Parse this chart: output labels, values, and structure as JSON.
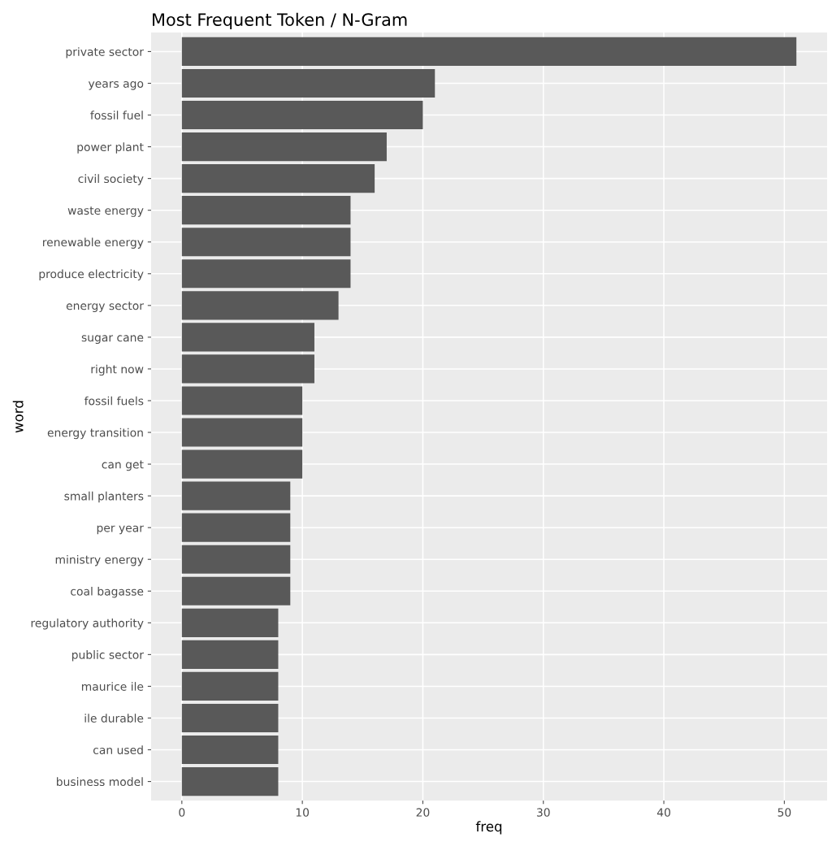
{
  "chart_data": {
    "type": "bar",
    "orientation": "horizontal",
    "title": "Most Frequent Token / N-Gram",
    "xlabel": "freq",
    "ylabel": "word",
    "categories": [
      "private sector",
      "years ago",
      "fossil fuel",
      "power plant",
      "civil society",
      "waste energy",
      "renewable energy",
      "produce electricity",
      "energy sector",
      "sugar cane",
      "right now",
      "fossil fuels",
      "energy transition",
      "can get",
      "small planters",
      "per year",
      "ministry energy",
      "coal bagasse",
      "regulatory authority",
      "public sector",
      "maurice ile",
      "ile durable",
      "can used",
      "business model"
    ],
    "values": [
      51,
      21,
      20,
      17,
      16,
      14,
      14,
      14,
      13,
      11,
      11,
      10,
      10,
      10,
      9,
      9,
      9,
      9,
      8,
      8,
      8,
      8,
      8,
      8
    ],
    "color": "#595959",
    "xlim": [
      -2.55,
      53.55
    ],
    "xticks": [
      0,
      10,
      20,
      30,
      40,
      50
    ],
    "grid": true,
    "legend": false
  }
}
